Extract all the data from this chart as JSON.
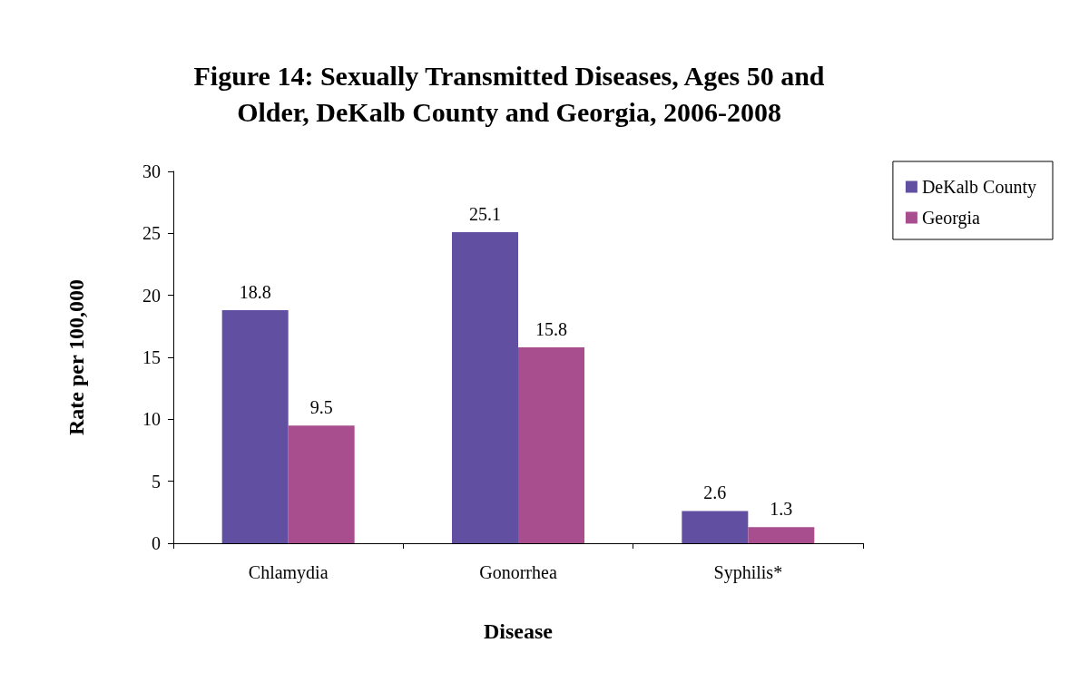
{
  "chart_data": {
    "type": "bar",
    "title": "Figure 14: Sexually Transmitted Diseases, Ages 50 and\nOlder, DeKalb County and Georgia, 2006-2008",
    "xlabel": "Disease",
    "ylabel": "Rate per 100,000",
    "categories": [
      "Chlamydia",
      "Gonorrhea",
      "Syphilis*"
    ],
    "series": [
      {
        "name": "DeKalb County",
        "color": "#6150a2",
        "values": [
          18.8,
          25.1,
          2.6
        ]
      },
      {
        "name": "Georgia",
        "color": "#a84d8e",
        "values": [
          9.5,
          15.8,
          1.3
        ]
      }
    ],
    "ylim": [
      0,
      30
    ],
    "yticks": [
      0,
      5,
      10,
      15,
      20,
      25,
      30
    ],
    "grid": false,
    "legend": "top right",
    "data_labels": true
  }
}
